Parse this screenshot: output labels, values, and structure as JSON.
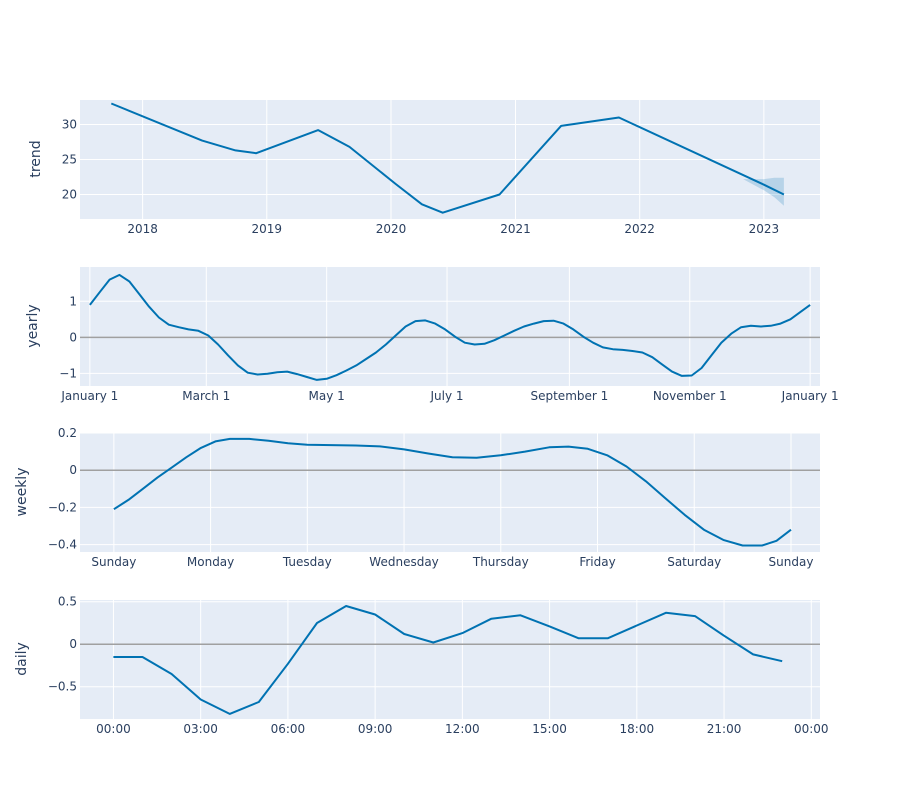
{
  "chart_data": [
    {
      "type": "line",
      "ylabel": "trend",
      "x_type": "date",
      "xlim": [
        "2017-07-01",
        "2023-06-15"
      ],
      "ylim": [
        16.5,
        33.5
      ],
      "xticks": [
        "2018-01-01",
        "2019-01-01",
        "2020-01-01",
        "2021-01-01",
        "2022-01-01",
        "2023-01-01"
      ],
      "xtick_labels": [
        "2018",
        "2019",
        "2020",
        "2021",
        "2022",
        "2023"
      ],
      "yticks": [
        20,
        25,
        30
      ],
      "ytick_labels": [
        "20",
        "25",
        "30"
      ],
      "zero_line": false,
      "grid": true,
      "series": [
        {
          "x": [
            "2017-10-01",
            "2018-06-25",
            "2018-10-01",
            "2018-12-01",
            "2019-06-01",
            "2019-09-01",
            "2020-01-15",
            "2020-04-01",
            "2020-06-01",
            "2020-11-15",
            "2021-05-15",
            "2021-11-01",
            "2023-01-01",
            "2023-03-01"
          ],
          "y": [
            33,
            27.7,
            26.3,
            25.9,
            29.2,
            26.8,
            21.5,
            18.6,
            17.4,
            20.0,
            29.8,
            31.0,
            21.4,
            20.0
          ],
          "color": "#0072b2"
        }
      ],
      "uncertainty_band": {
        "x": [
          "2022-11-01",
          "2023-01-01",
          "2023-02-01",
          "2023-03-01"
        ],
        "upper": [
          22.2,
          22.2,
          22.4,
          22.4
        ],
        "lower": [
          22.2,
          20.6,
          19.6,
          18.4
        ],
        "color": "#0072b2"
      }
    },
    {
      "type": "line",
      "ylabel": "yearly",
      "x_type": "linear",
      "xlim": [
        -5,
        370
      ],
      "ylim": [
        -1.35,
        1.95
      ],
      "xticks": [
        0,
        59,
        120,
        181,
        243,
        304,
        365
      ],
      "xtick_labels": [
        "January  1",
        "March  1",
        "May  1",
        "July  1",
        "September  1",
        "November  1",
        "January  1"
      ],
      "yticks": [
        -1,
        0,
        1
      ],
      "ytick_labels": [
        "−1",
        "0",
        "1"
      ],
      "zero_line": true,
      "grid": true,
      "series": [
        {
          "x": [
            0,
            5,
            10,
            15,
            20,
            25,
            30,
            35,
            40,
            45,
            50,
            55,
            60,
            65,
            70,
            75,
            80,
            85,
            90,
            95,
            100,
            105,
            110,
            115,
            120,
            125,
            130,
            135,
            140,
            145,
            150,
            155,
            160,
            165,
            170,
            175,
            180,
            185,
            190,
            195,
            200,
            205,
            210,
            215,
            220,
            225,
            230,
            235,
            240,
            245,
            250,
            255,
            260,
            265,
            270,
            275,
            280,
            285,
            290,
            295,
            300,
            305,
            310,
            315,
            320,
            325,
            330,
            335,
            340,
            345,
            350,
            355,
            360,
            365
          ],
          "y": [
            0.9,
            1.25,
            1.6,
            1.73,
            1.55,
            1.2,
            0.85,
            0.55,
            0.35,
            0.28,
            0.22,
            0.18,
            0.05,
            -0.2,
            -0.5,
            -0.78,
            -0.98,
            -1.03,
            -1.01,
            -0.97,
            -0.95,
            -1.02,
            -1.1,
            -1.18,
            -1.15,
            -1.05,
            -0.92,
            -0.78,
            -0.6,
            -0.42,
            -0.2,
            0.05,
            0.3,
            0.45,
            0.47,
            0.38,
            0.22,
            0.02,
            -0.15,
            -0.2,
            -0.18,
            -0.08,
            0.05,
            0.18,
            0.3,
            0.38,
            0.45,
            0.46,
            0.38,
            0.22,
            0.02,
            -0.15,
            -0.28,
            -0.33,
            -0.35,
            -0.38,
            -0.42,
            -0.55,
            -0.75,
            -0.95,
            -1.07,
            -1.06,
            -0.85,
            -0.5,
            -0.15,
            0.1,
            0.28,
            0.32,
            0.3,
            0.32,
            0.38,
            0.5,
            0.7,
            0.9
          ]
        }
      ]
    },
    {
      "type": "line",
      "ylabel": "weekly",
      "x_type": "linear",
      "xlim": [
        -0.35,
        7.3
      ],
      "ylim": [
        -0.44,
        0.2
      ],
      "xticks": [
        0,
        1,
        2,
        3,
        4,
        5,
        6,
        7
      ],
      "xtick_labels": [
        "Sunday",
        "Monday",
        "Tuesday",
        "Wednesday",
        "Thursday",
        "Friday",
        "Saturday",
        "Sunday"
      ],
      "yticks": [
        -0.4,
        -0.2,
        0,
        0.2
      ],
      "ytick_labels": [
        "−0.4",
        "−0.2",
        "0",
        "0.2"
      ],
      "zero_line": true,
      "grid": true,
      "series": [
        {
          "x": [
            0,
            0.15,
            0.3,
            0.45,
            0.6,
            0.75,
            0.9,
            1.05,
            1.2,
            1.4,
            1.6,
            1.8,
            2,
            2.25,
            2.5,
            2.75,
            3,
            3.25,
            3.5,
            3.75,
            4,
            4.25,
            4.5,
            4.7,
            4.9,
            5.1,
            5.3,
            5.5,
            5.7,
            5.9,
            6.1,
            6.3,
            6.5,
            6.7,
            6.85,
            7
          ],
          "y": [
            -0.21,
            -0.16,
            -0.1,
            -0.04,
            0.015,
            0.07,
            0.12,
            0.155,
            0.168,
            0.168,
            0.158,
            0.145,
            0.137,
            0.135,
            0.133,
            0.128,
            0.112,
            0.09,
            0.07,
            0.067,
            0.08,
            0.1,
            0.123,
            0.127,
            0.115,
            0.08,
            0.02,
            -0.06,
            -0.15,
            -0.24,
            -0.32,
            -0.375,
            -0.405,
            -0.405,
            -0.38,
            -0.32
          ]
        }
      ]
    },
    {
      "type": "line",
      "ylabel": "daily",
      "x_type": "linear",
      "xlim": [
        -1.15,
        24.3
      ],
      "ylim": [
        -0.88,
        0.52
      ],
      "xticks": [
        0,
        3,
        6,
        9,
        12,
        15,
        18,
        21,
        24
      ],
      "xtick_labels": [
        "00:00",
        "03:00",
        "06:00",
        "09:00",
        "12:00",
        "15:00",
        "18:00",
        "21:00",
        "00:00"
      ],
      "yticks": [
        -0.5,
        0,
        0.5
      ],
      "ytick_labels": [
        "−0.5",
        "0",
        "0.5"
      ],
      "zero_line": true,
      "grid": true,
      "series": [
        {
          "x": [
            0,
            1,
            2,
            3,
            4,
            5,
            6,
            7,
            8,
            9,
            10,
            11,
            12,
            13,
            14,
            15,
            16,
            17,
            18,
            19,
            20,
            21,
            22,
            23
          ],
          "y": [
            -0.15,
            -0.15,
            -0.35,
            -0.65,
            -0.82,
            -0.68,
            -0.23,
            0.25,
            0.45,
            0.35,
            0.12,
            0.02,
            0.13,
            0.3,
            0.34,
            0.21,
            0.07,
            0.07,
            0.22,
            0.37,
            0.33,
            0.1,
            -0.12,
            -0.2
          ]
        }
      ]
    }
  ]
}
